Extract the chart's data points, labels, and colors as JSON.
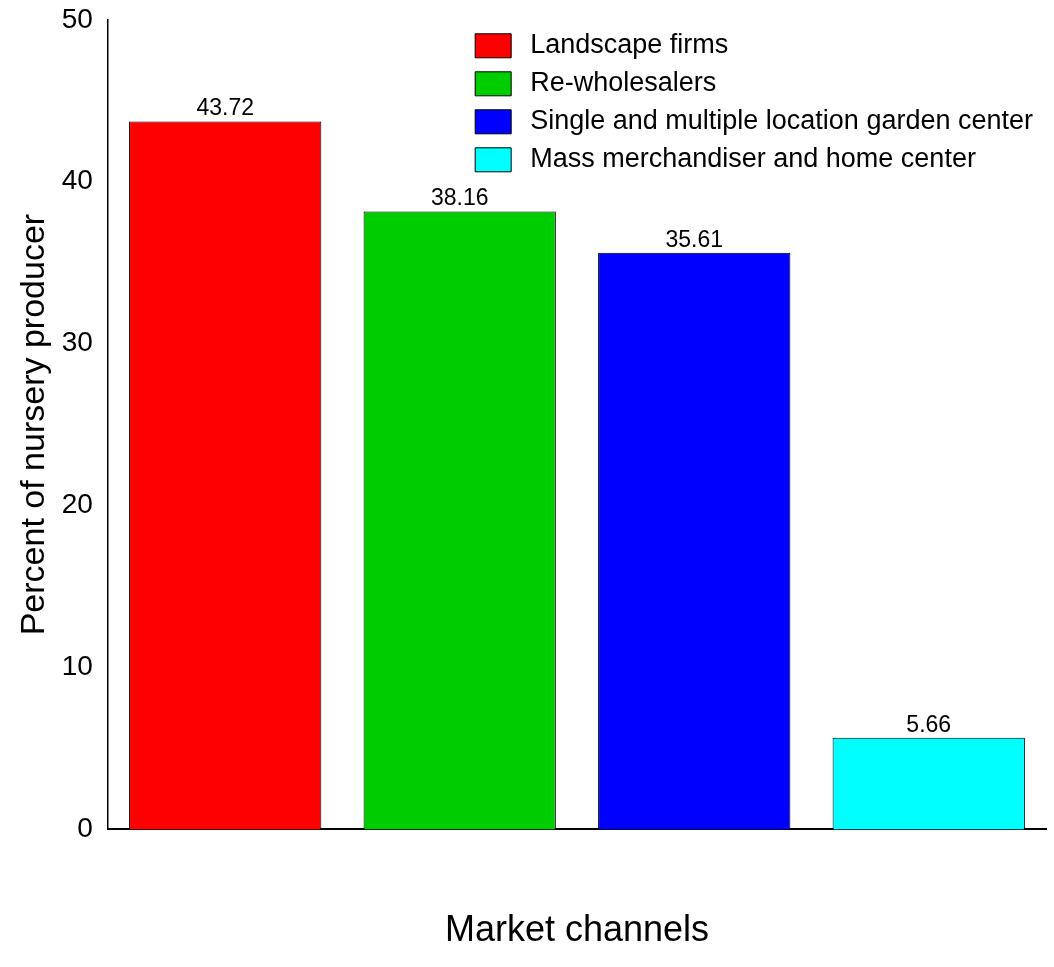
{
  "chart_data": {
    "type": "bar",
    "xlabel": "Market channels",
    "ylabel": "Percent of nursery producer",
    "categories": [
      null,
      null,
      null,
      null
    ],
    "series": [
      {
        "name": "Landscape firms",
        "color": "#ff0000",
        "values": [
          43.72,
          null,
          null,
          null
        ]
      },
      {
        "name": "Re-wholesalers",
        "color": "#00cd00",
        "values": [
          null,
          38.16,
          null,
          null
        ]
      },
      {
        "name": "Single and multiple location garden center",
        "color": "#0000ff",
        "values": [
          null,
          null,
          35.61,
          null
        ]
      },
      {
        "name": "Mass merchandiser and home center",
        "color": "#00ffff",
        "values": [
          null,
          null,
          null,
          5.66
        ]
      }
    ],
    "ylim": [
      0,
      50
    ],
    "yticks": [
      0,
      10,
      20,
      30,
      40,
      50
    ],
    "grid": false,
    "legend": "top right",
    "data_labels": true
  }
}
